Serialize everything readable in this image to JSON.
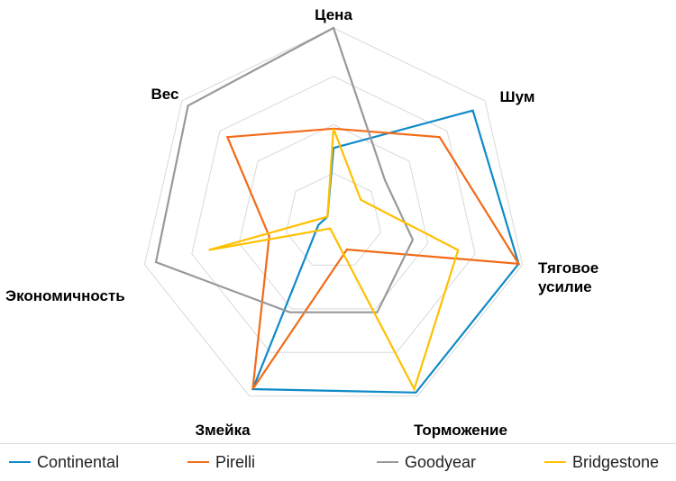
{
  "chart_data": {
    "type": "radar",
    "axes": [
      "Цена",
      "Шум",
      "Тяговое усилие",
      "Торможение",
      "Змейка",
      "Экономичность",
      "Вес"
    ],
    "axis_label_lines": [
      [
        "Цена"
      ],
      [
        "Шум"
      ],
      [
        "Тяговое",
        "усилие"
      ],
      [
        "Торможение"
      ],
      [
        "Змейка"
      ],
      [
        "Экономичность"
      ],
      [
        "Вес"
      ]
    ],
    "range": [
      0,
      5
    ],
    "grid_levels": 4,
    "series": [
      {
        "name": "Continental",
        "color": "#0f8ac8",
        "values": [
          1.9,
          4.6,
          4.9,
          4.9,
          4.8,
          0.4,
          0.2
        ]
      },
      {
        "name": "Pirelli",
        "color": "#f26b17",
        "values": [
          2.4,
          3.5,
          4.9,
          0.8,
          4.8,
          1.7,
          3.5
        ]
      },
      {
        "name": "Goodyear",
        "color": "#999999",
        "values": [
          5.0,
          1.7,
          2.1,
          2.6,
          2.6,
          4.7,
          4.8
        ]
      },
      {
        "name": "Bridgestone",
        "color": "#ffc000",
        "values": [
          2.4,
          0.9,
          3.3,
          4.8,
          0.2,
          3.3,
          0.2
        ]
      }
    ]
  }
}
